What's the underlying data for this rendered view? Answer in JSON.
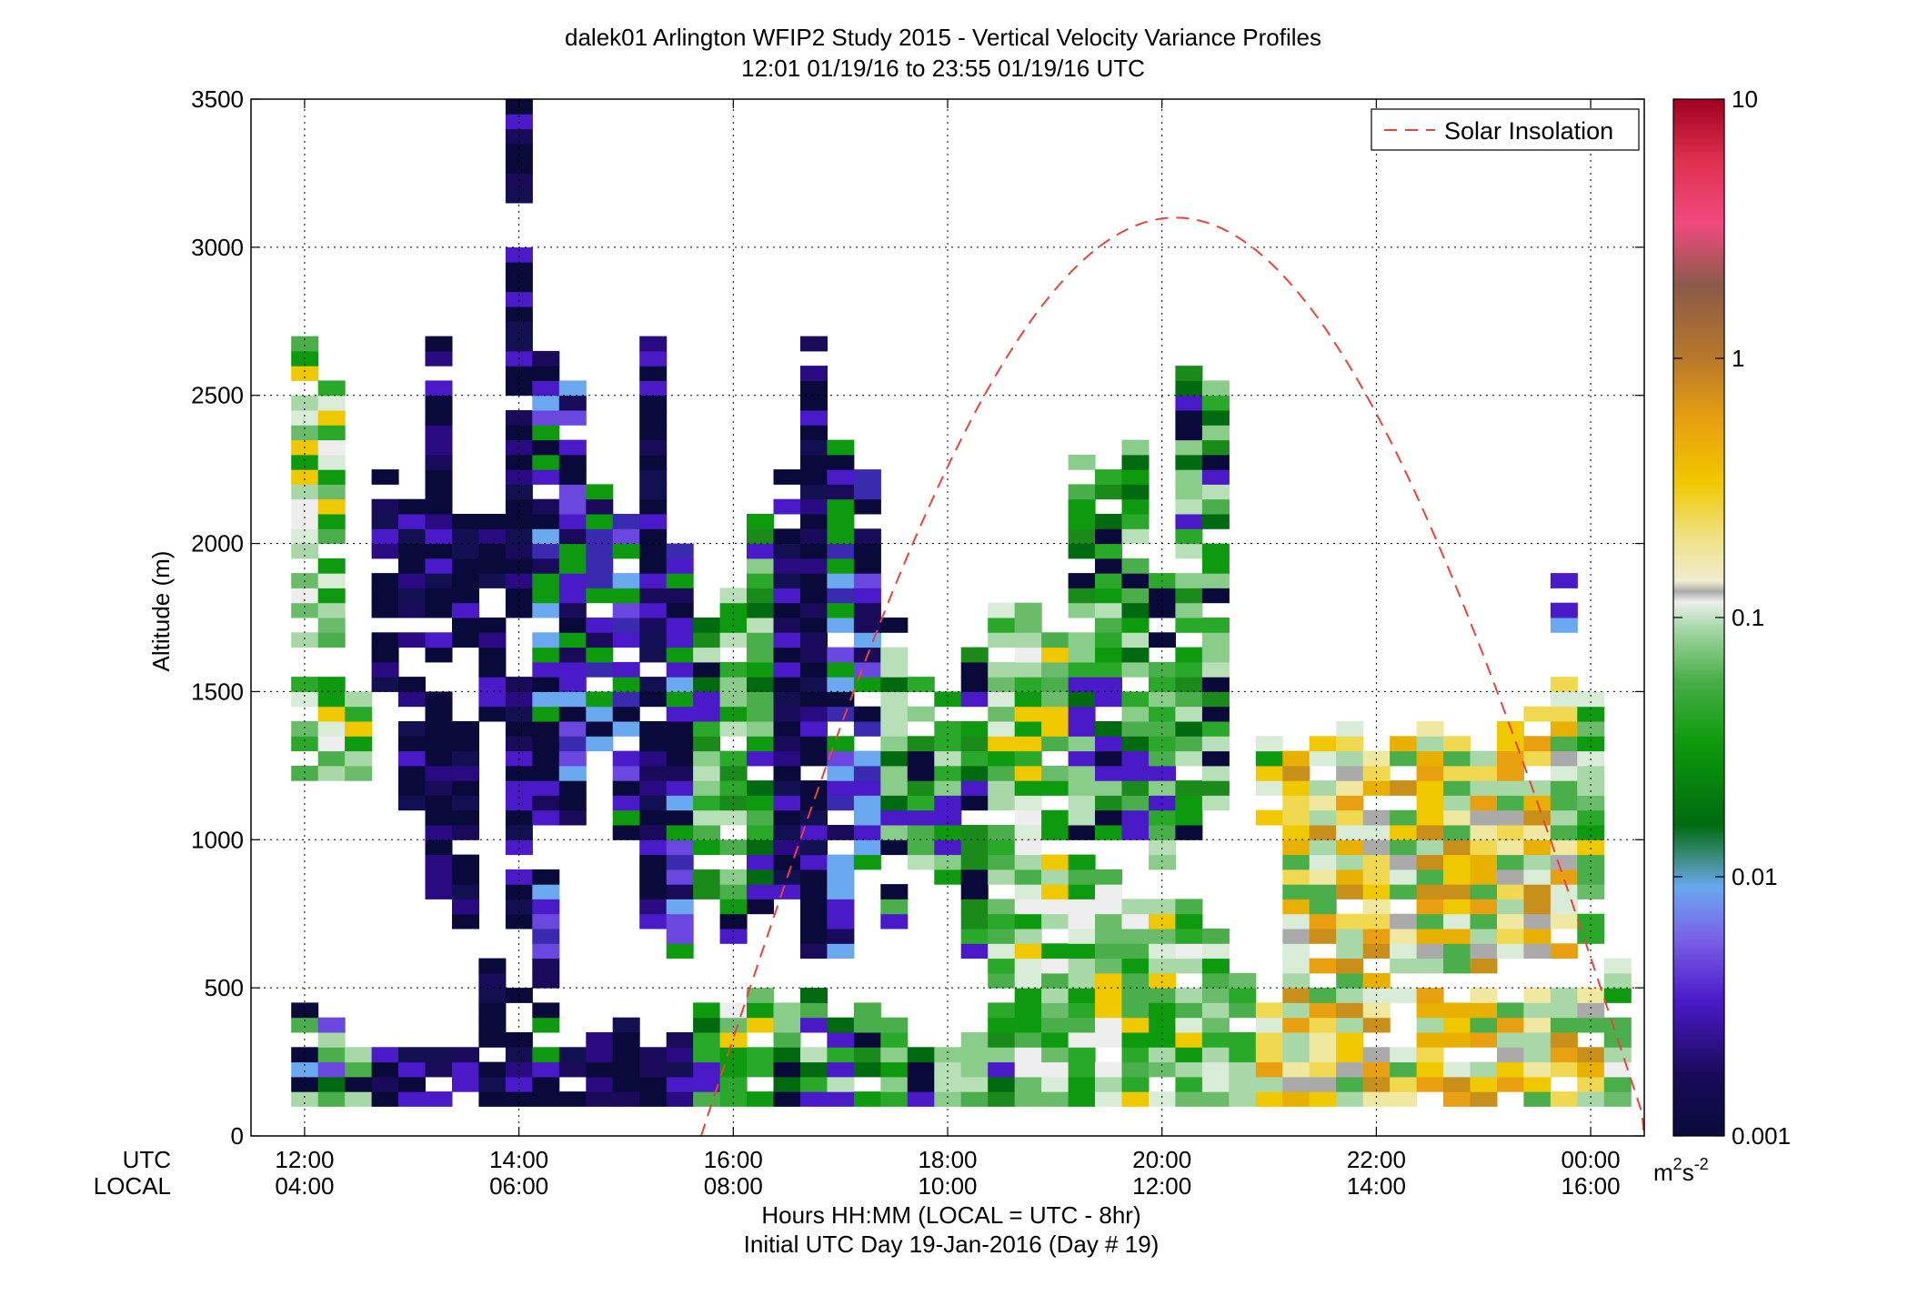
{
  "chart_data": {
    "type": "heatmap",
    "title": "dalek01 Arlington WFIP2 Study 2015 - Vertical Velocity Variance Profiles",
    "subtitle": "12:01 01/19/16 to 23:55 01/19/16  UTC",
    "ylabel": "Altitude (m)",
    "xlabel": "Hours HH:MM  (LOCAL = UTC - 8hr)",
    "xlabel2": "Initial UTC Day 19-Jan-2016 (Day # 19)",
    "x_row_labels": [
      "UTC",
      "LOCAL"
    ],
    "x_ticks_utc": [
      "12:00",
      "14:00",
      "16:00",
      "18:00",
      "20:00",
      "22:00",
      "00:00"
    ],
    "x_ticks_local": [
      "04:00",
      "06:00",
      "08:00",
      "10:00",
      "12:00",
      "14:00",
      "16:00"
    ],
    "x_tick_hours": [
      12,
      14,
      16,
      18,
      20,
      22,
      24
    ],
    "xlim_hours_utc": [
      11.5,
      24.5
    ],
    "y_ticks": [
      0,
      500,
      1000,
      1500,
      2000,
      2500,
      3000,
      3500
    ],
    "ylim": [
      0,
      3500
    ],
    "grid": true,
    "colorbar": {
      "scale": "log",
      "range": [
        0.001,
        10
      ],
      "tick_values": [
        0.001,
        0.01,
        0.1,
        1,
        10
      ],
      "tick_labels": [
        "0.001",
        "0.01",
        "0.1",
        "1",
        "10"
      ],
      "unit_base": "m",
      "unit_sup1": "2",
      "unit_mid": "s",
      "unit_sup2": "-2"
    },
    "legend": {
      "entry": "Solar Insolation",
      "placement": "top-right",
      "color": "#e8443c"
    },
    "solar_insolation": {
      "sunrise_utc_hours": 15.7,
      "sunset_utc_hours": 24.55,
      "peak_utc_hours": 20.25,
      "peak_altitude_equiv": 3100
    },
    "grid_cell": {
      "dt_hours": 0.25,
      "dz_m": 50
    },
    "series_columns_utc_start": 12.0,
    "columns": [
      {
        "t": 12.0,
        "segs": [
          [
            100,
            500,
            "lo"
          ],
          [
            1200,
            1550,
            "mix"
          ],
          [
            1600,
            2700,
            "mix"
          ]
        ]
      },
      {
        "t": 12.25,
        "segs": [
          [
            100,
            400,
            "lo"
          ],
          [
            1200,
            1550,
            "mix"
          ],
          [
            1650,
            2550,
            "mix"
          ]
        ]
      },
      {
        "t": 12.5,
        "segs": [
          [
            100,
            350,
            "lo"
          ],
          [
            1200,
            1500,
            "mix"
          ]
        ]
      },
      {
        "t": 12.75,
        "segs": [
          [
            100,
            300,
            "vlo"
          ],
          [
            1500,
            2250,
            "vlo"
          ]
        ]
      },
      {
        "t": 13.0,
        "segs": [
          [
            100,
            300,
            "vlo"
          ],
          [
            1100,
            2150,
            "vlo"
          ]
        ]
      },
      {
        "t": 13.25,
        "segs": [
          [
            100,
            300,
            "vlo"
          ],
          [
            800,
            1500,
            "vlo"
          ],
          [
            1600,
            2700,
            "vlo"
          ]
        ]
      },
      {
        "t": 13.5,
        "segs": [
          [
            100,
            300,
            "vlo"
          ],
          [
            650,
            1400,
            "vlo"
          ],
          [
            1650,
            2100,
            "vlo"
          ]
        ]
      },
      {
        "t": 13.75,
        "segs": [
          [
            100,
            300,
            "vlo"
          ],
          [
            300,
            600,
            "vlo"
          ],
          [
            1400,
            2100,
            "vlo"
          ]
        ]
      },
      {
        "t": 14.0,
        "segs": [
          [
            100,
            500,
            "vlo"
          ],
          [
            700,
            1550,
            "vlo"
          ],
          [
            1750,
            3500,
            "vlo"
          ]
        ]
      },
      {
        "t": 14.25,
        "segs": [
          [
            100,
            900,
            "low"
          ],
          [
            1050,
            2650,
            "low"
          ]
        ]
      },
      {
        "t": 14.5,
        "segs": [
          [
            100,
            300,
            "vlo"
          ],
          [
            1050,
            2550,
            "low"
          ]
        ]
      },
      {
        "t": 14.75,
        "segs": [
          [
            100,
            350,
            "vlo"
          ],
          [
            1300,
            2200,
            "low"
          ]
        ]
      },
      {
        "t": 15.0,
        "segs": [
          [
            100,
            400,
            "vlo"
          ],
          [
            1000,
            2100,
            "low"
          ]
        ]
      },
      {
        "t": 15.25,
        "segs": [
          [
            100,
            350,
            "vlo"
          ],
          [
            700,
            2700,
            "vlo"
          ]
        ]
      },
      {
        "t": 15.5,
        "segs": [
          [
            100,
            350,
            "vlo"
          ],
          [
            600,
            2000,
            "low"
          ]
        ]
      },
      {
        "t": 15.75,
        "segs": [
          [
            100,
            450,
            "mid"
          ],
          [
            700,
            1800,
            "mid"
          ]
        ]
      },
      {
        "t": 16.0,
        "segs": [
          [
            100,
            450,
            "mix"
          ],
          [
            650,
            1850,
            "mid"
          ]
        ]
      },
      {
        "t": 16.25,
        "segs": [
          [
            100,
            500,
            "mix"
          ],
          [
            700,
            2100,
            "mid"
          ]
        ]
      },
      {
        "t": 16.5,
        "segs": [
          [
            100,
            450,
            "mid"
          ],
          [
            800,
            2250,
            "vlo"
          ]
        ]
      },
      {
        "t": 16.75,
        "segs": [
          [
            100,
            500,
            "mid"
          ],
          [
            600,
            2700,
            "vlo"
          ]
        ]
      },
      {
        "t": 17.0,
        "segs": [
          [
            100,
            400,
            "mid"
          ],
          [
            600,
            2350,
            "low"
          ]
        ]
      },
      {
        "t": 17.25,
        "segs": [
          [
            100,
            450,
            "mid"
          ],
          [
            900,
            2250,
            "low"
          ]
        ]
      },
      {
        "t": 17.5,
        "segs": [
          [
            100,
            400,
            "mid"
          ],
          [
            700,
            1750,
            "mid"
          ]
        ]
      },
      {
        "t": 17.75,
        "segs": [
          [
            100,
            350,
            "mid"
          ],
          [
            900,
            1550,
            "mid"
          ]
        ]
      },
      {
        "t": 18.0,
        "segs": [
          [
            100,
            300,
            "mid"
          ],
          [
            750,
            1500,
            "mid"
          ]
        ]
      },
      {
        "t": 18.25,
        "segs": [
          [
            100,
            350,
            "mid"
          ],
          [
            600,
            1650,
            "mid"
          ]
        ]
      },
      {
        "t": 18.5,
        "segs": [
          [
            100,
            450,
            "mid"
          ],
          [
            500,
            1800,
            "mix"
          ]
        ]
      },
      {
        "t": 18.75,
        "segs": [
          [
            100,
            700,
            "mix"
          ],
          [
            700,
            1800,
            "mix"
          ]
        ]
      },
      {
        "t": 19.0,
        "segs": [
          [
            100,
            900,
            "mix"
          ],
          [
            900,
            1700,
            "mix"
          ]
        ]
      },
      {
        "t": 19.25,
        "segs": [
          [
            100,
            950,
            "mix"
          ],
          [
            1000,
            2350,
            "mid"
          ]
        ]
      },
      {
        "t": 19.5,
        "segs": [
          [
            100,
            900,
            "mix"
          ],
          [
            1000,
            2250,
            "mid"
          ]
        ]
      },
      {
        "t": 19.75,
        "segs": [
          [
            100,
            800,
            "mix"
          ],
          [
            1000,
            2350,
            "mid"
          ]
        ]
      },
      {
        "t": 20.0,
        "segs": [
          [
            100,
            800,
            "mix"
          ],
          [
            900,
            1900,
            "mid"
          ]
        ]
      },
      {
        "t": 20.25,
        "segs": [
          [
            100,
            800,
            "mix"
          ],
          [
            1000,
            2600,
            "mid"
          ]
        ]
      },
      {
        "t": 20.5,
        "segs": [
          [
            100,
            700,
            "mix"
          ],
          [
            1100,
            2550,
            "mid"
          ]
        ]
      },
      {
        "t": 20.75,
        "segs": [
          [
            100,
            550,
            "mix"
          ]
        ]
      },
      {
        "t": 21.0,
        "segs": [
          [
            100,
            500,
            "hi"
          ],
          [
            1050,
            1350,
            "mix"
          ]
        ]
      },
      {
        "t": 21.25,
        "segs": [
          [
            100,
            500,
            "hi"
          ],
          [
            500,
            1300,
            "hi"
          ]
        ]
      },
      {
        "t": 21.5,
        "segs": [
          [
            100,
            500,
            "hi"
          ],
          [
            500,
            1350,
            "hi"
          ]
        ]
      },
      {
        "t": 21.75,
        "segs": [
          [
            100,
            500,
            "hi"
          ],
          [
            500,
            1400,
            "hi"
          ]
        ]
      },
      {
        "t": 22.0,
        "segs": [
          [
            100,
            500,
            "hi"
          ],
          [
            500,
            1300,
            "hi"
          ]
        ]
      },
      {
        "t": 22.25,
        "segs": [
          [
            100,
            500,
            "hi"
          ],
          [
            550,
            1350,
            "hi"
          ]
        ]
      },
      {
        "t": 22.5,
        "segs": [
          [
            100,
            500,
            "hi"
          ],
          [
            550,
            1400,
            "hi"
          ]
        ]
      },
      {
        "t": 22.75,
        "segs": [
          [
            100,
            500,
            "hi"
          ],
          [
            550,
            1350,
            "hi"
          ]
        ]
      },
      {
        "t": 23.0,
        "segs": [
          [
            100,
            500,
            "hi"
          ],
          [
            500,
            1300,
            "hi"
          ]
        ]
      },
      {
        "t": 23.25,
        "segs": [
          [
            100,
            500,
            "hi"
          ],
          [
            600,
            1400,
            "hi"
          ]
        ]
      },
      {
        "t": 23.5,
        "segs": [
          [
            100,
            500,
            "hi"
          ],
          [
            600,
            1450,
            "hi"
          ]
        ]
      },
      {
        "t": 23.75,
        "segs": [
          [
            100,
            500,
            "hi"
          ],
          [
            600,
            1550,
            "hi"
          ],
          [
            1700,
            1900,
            "low"
          ]
        ]
      },
      {
        "t": 24.0,
        "segs": [
          [
            100,
            500,
            "hi"
          ],
          [
            650,
            1500,
            "mix"
          ]
        ]
      },
      {
        "t": 24.25,
        "segs": [
          [
            100,
            600,
            "mix"
          ]
        ]
      }
    ]
  }
}
